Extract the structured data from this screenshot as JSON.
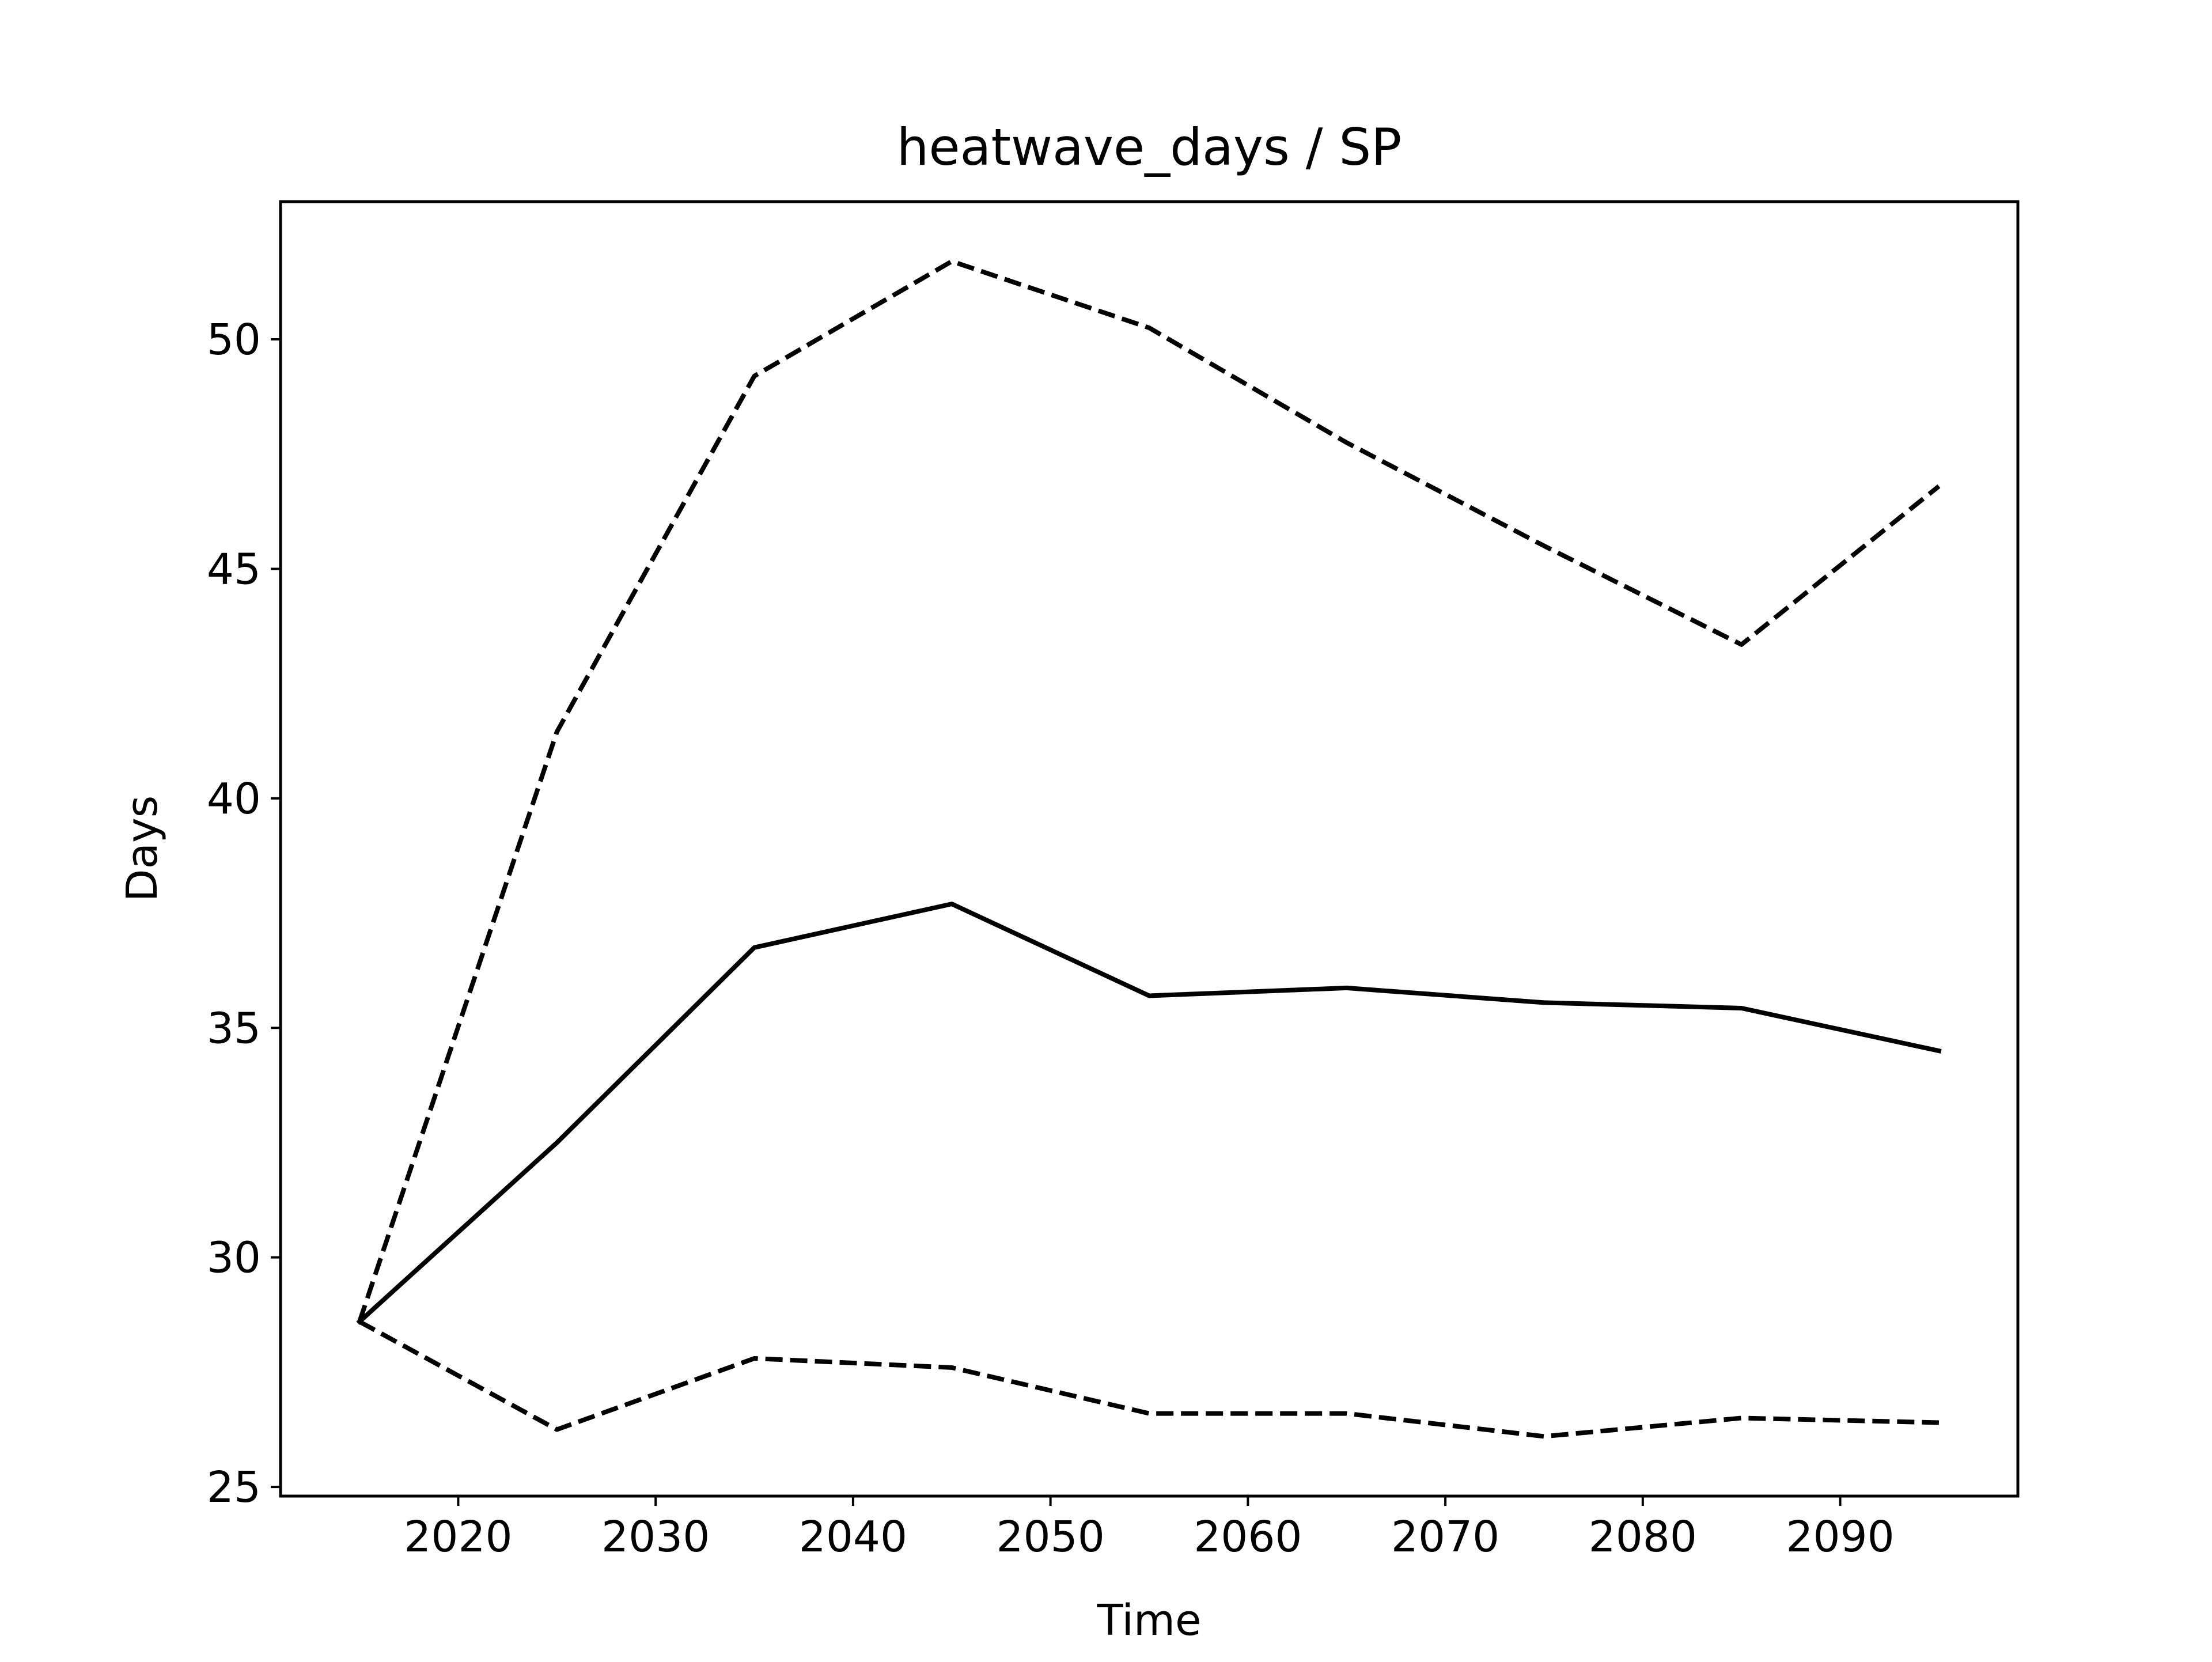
{
  "chart_data": {
    "type": "line",
    "title": "heatwave_days / SP",
    "xlabel": "Time",
    "ylabel": "Days",
    "x": [
      2015,
      2025,
      2035,
      2045,
      2055,
      2065,
      2075,
      2085,
      2095
    ],
    "series": [
      {
        "line_style": "solid",
        "color": "#000000",
        "values": [
          28.6,
          32.5,
          36.75,
          37.7,
          35.7,
          35.87,
          35.55,
          35.43,
          34.5
        ]
      },
      {
        "line_style": "dashed",
        "color": "#000000",
        "values": [
          28.6,
          41.45,
          49.2,
          51.7,
          50.25,
          47.75,
          45.5,
          43.35,
          46.8
        ]
      },
      {
        "line_style": "dashed",
        "color": "#000000",
        "values": [
          28.6,
          26.25,
          27.8,
          27.6,
          26.6,
          26.6,
          26.1,
          26.5,
          26.4
        ]
      }
    ],
    "xlim": [
      2011,
      2099
    ],
    "ylim": [
      24.8,
      53.0
    ],
    "xticks": [
      2020,
      2030,
      2040,
      2050,
      2060,
      2070,
      2080,
      2090
    ],
    "yticks": [
      25,
      30,
      35,
      40,
      45,
      50
    ],
    "grid": false,
    "legend": "none"
  }
}
